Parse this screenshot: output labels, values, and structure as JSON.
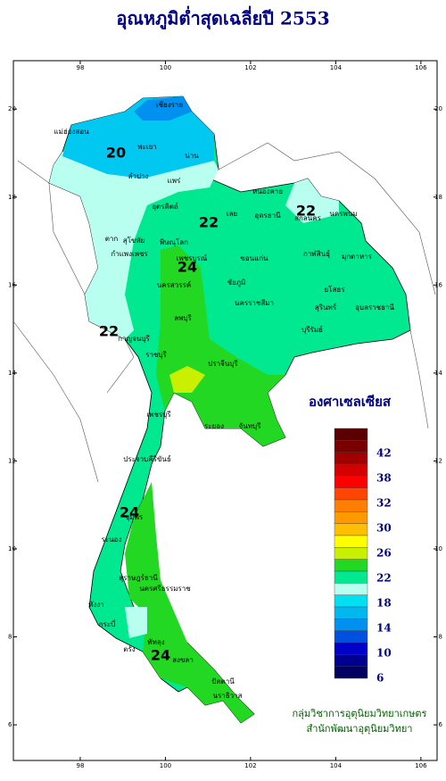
{
  "title": "อุณหภูมิต่ำสุดเฉลี่ยปี 2553",
  "map": {
    "xlim": [
      96.43,
      106.38
    ],
    "ylim": [
      5.19,
      21.1
    ],
    "xticks": [
      98,
      100,
      102,
      104,
      106
    ],
    "yticks": [
      6,
      8,
      10,
      12,
      14,
      16,
      18,
      20
    ]
  },
  "contour_labels": [
    "20",
    "22",
    "22",
    "24",
    "22",
    "24",
    "24"
  ],
  "provinces": [
    "เชียงราย",
    "แม่ฮ่องสอน",
    "พะเยา",
    "น่าน",
    "ลำปาง",
    "แพร่",
    "อุตรดิตถ์",
    "ตาก",
    "สุโขทัย",
    "พิษณุโลก",
    "กำแพงเพชร",
    "เพชรบูรณ์",
    "เลย",
    "หนองคาย",
    "อุดรธานี",
    "สกลนคร",
    "นครพนม",
    "กาฬสินธุ์",
    "มุกดาหาร",
    "ขอนแก่น",
    "ชัยภูมิ",
    "นครสวรรค์",
    "ลพบุรี",
    "นครราชสีมา",
    "บุรีรัมย์",
    "สุรินทร์",
    "ยโสธร",
    "อุบลราชธานี",
    "กาญจนบุรี",
    "ราชบุรี",
    "ปราจีนบุรี",
    "ระยอง",
    "จันทบุรี",
    "เพชรบุรี",
    "ประจวบคีรีขันธ์",
    "ชุมพร",
    "ระนอง",
    "สุราษฎร์ธานี",
    "นครศรีธรรมราช",
    "พังงา",
    "กระบี่",
    "ตรัง",
    "พัทลุง",
    "สงขลา",
    "ปัตตานี",
    "นราธิวาส"
  ],
  "legend": {
    "title": "องศาเซลเซียส",
    "colors": [
      "#5a0000",
      "#7a0000",
      "#a00000",
      "#d40000",
      "#ff0000",
      "#ff4500",
      "#ff7f00",
      "#ff9900",
      "#ffbf00",
      "#ffff00",
      "#c8f000",
      "#22d822",
      "#00e890",
      "#b8fff0",
      "#00e0f0",
      "#00b8f0",
      "#0090f0",
      "#0050e0",
      "#0000c8",
      "#000090",
      "#000060"
    ],
    "labels": [
      42,
      38,
      32,
      30,
      26,
      22,
      18,
      14,
      10,
      6
    ]
  },
  "credits": [
    "กลุ่มวิชาการอุตุนิยมวิทยาเกษตร",
    "สำนักพัฒนาอุตุนิยมวิทยา"
  ]
}
